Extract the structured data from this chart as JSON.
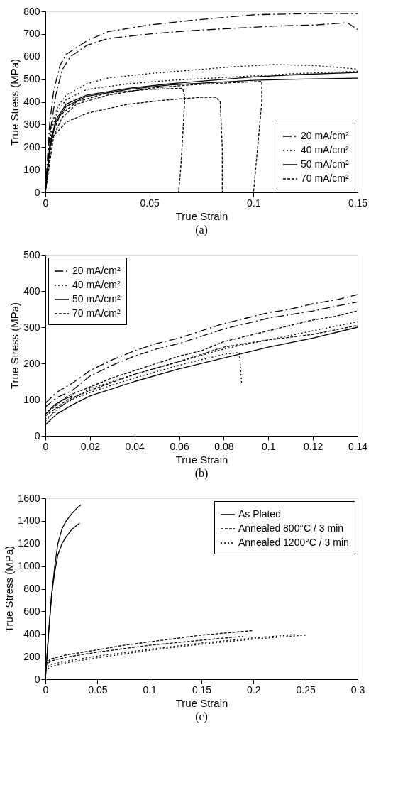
{
  "chart_data": [
    {
      "type": "line",
      "title": "(a)",
      "xlabel": "True Strain",
      "ylabel": "True Stress (MPa)",
      "xlim": [
        0,
        0.15
      ],
      "ylim": [
        0,
        800
      ],
      "xticks": [
        0,
        0.05,
        0.1,
        0.15
      ],
      "yticks": [
        0,
        100,
        200,
        300,
        400,
        500,
        600,
        700,
        800
      ],
      "grid": false,
      "legend": "bottom right",
      "series": [
        {
          "name": "20 mA/cm²",
          "color": "#000000",
          "line_style": "dashdot",
          "x": [
            0,
            0.002,
            0.004,
            0.007,
            0.01,
            0.02,
            0.03,
            0.05,
            0.07,
            0.1,
            0.125,
            0.15
          ],
          "values": [
            0,
            300,
            450,
            560,
            610,
            670,
            710,
            740,
            760,
            785,
            790,
            790
          ]
        },
        {
          "color": "#000000",
          "line_style": "dashdot",
          "x": [
            0,
            0.002,
            0.005,
            0.008,
            0.012,
            0.02,
            0.03,
            0.05,
            0.07,
            0.09,
            0.11,
            0.13,
            0.145,
            0.15
          ],
          "values": [
            0,
            250,
            430,
            540,
            600,
            650,
            680,
            700,
            715,
            725,
            735,
            740,
            750,
            720
          ]
        },
        {
          "name": "40 mA/cm²",
          "color": "#000000",
          "line_style": "dotted",
          "x": [
            0,
            0.003,
            0.006,
            0.01,
            0.02,
            0.03,
            0.05,
            0.07,
            0.09,
            0.11,
            0.13,
            0.15
          ],
          "values": [
            0,
            300,
            380,
            430,
            480,
            505,
            525,
            540,
            555,
            565,
            560,
            545
          ]
        },
        {
          "color": "#000000",
          "line_style": "dotted",
          "x": [
            0,
            0.003,
            0.006,
            0.01,
            0.02,
            0.04,
            0.06,
            0.08,
            0.1,
            0.12,
            0.15
          ],
          "values": [
            0,
            280,
            360,
            410,
            455,
            480,
            495,
            505,
            515,
            525,
            535
          ]
        },
        {
          "name": "50 mA/cm²",
          "color": "#000000",
          "line_style": "solid",
          "x": [
            0,
            0.002,
            0.005,
            0.01,
            0.02,
            0.04,
            0.06,
            0.08,
            0.1,
            0.12,
            0.15
          ],
          "values": [
            0,
            200,
            320,
            390,
            430,
            460,
            480,
            495,
            510,
            520,
            530
          ]
        },
        {
          "color": "#000000",
          "line_style": "solid",
          "x": [
            0,
            0.002,
            0.005,
            0.01,
            0.02,
            0.04,
            0.06,
            0.08,
            0.1,
            0.12,
            0.15
          ],
          "values": [
            0,
            190,
            310,
            380,
            425,
            455,
            475,
            485,
            495,
            500,
            505
          ]
        },
        {
          "name": "70 mA/cm²",
          "color": "#000000",
          "line_style": "dashed",
          "x": [
            0,
            0.003,
            0.007,
            0.015,
            0.03,
            0.05,
            0.066,
            0.067,
            0.066,
            0.065,
            0.064
          ],
          "values": [
            0,
            250,
            340,
            400,
            440,
            455,
            460,
            420,
            250,
            100,
            0
          ]
        },
        {
          "color": "#000000",
          "line_style": "dashed",
          "x": [
            0,
            0.004,
            0.01,
            0.02,
            0.04,
            0.06,
            0.075,
            0.082,
            0.084,
            0.085,
            0.085
          ],
          "values": [
            0,
            250,
            310,
            350,
            390,
            410,
            420,
            420,
            400,
            200,
            0
          ]
        },
        {
          "color": "#000000",
          "line_style": "dashed",
          "x": [
            0,
            0.003,
            0.008,
            0.015,
            0.03,
            0.05,
            0.07,
            0.09,
            0.104,
            0.104,
            0.102,
            0.1
          ],
          "values": [
            0,
            230,
            330,
            390,
            430,
            460,
            475,
            485,
            490,
            400,
            200,
            0
          ]
        }
      ]
    },
    {
      "type": "line",
      "title": "(b)",
      "xlabel": "True Strain",
      "ylabel": "True Stress (MPa)",
      "xlim": [
        0,
        0.14
      ],
      "ylim": [
        0,
        500
      ],
      "xticks": [
        0,
        0.02,
        0.04,
        0.06,
        0.08,
        0.1,
        0.12,
        0.14
      ],
      "yticks": [
        0,
        100,
        200,
        300,
        400,
        500
      ],
      "grid": false,
      "legend": "top left",
      "series": [
        {
          "name": "20 mA/cm²",
          "color": "#000000",
          "line_style": "dashdot",
          "x": [
            0,
            0.005,
            0.012,
            0.02,
            0.03,
            0.04,
            0.05,
            0.06,
            0.07,
            0.08,
            0.09,
            0.1,
            0.11,
            0.12,
            0.13,
            0.14
          ],
          "values": [
            90,
            120,
            145,
            180,
            210,
            235,
            255,
            270,
            290,
            310,
            325,
            340,
            350,
            365,
            375,
            390
          ]
        },
        {
          "color": "#000000",
          "line_style": "dashdot",
          "x": [
            0,
            0.005,
            0.012,
            0.02,
            0.03,
            0.04,
            0.05,
            0.06,
            0.07,
            0.08,
            0.1,
            0.12,
            0.14
          ],
          "values": [
            80,
            105,
            125,
            165,
            195,
            220,
            240,
            255,
            275,
            295,
            325,
            345,
            370
          ]
        },
        {
          "name": "40 mA/cm²",
          "color": "#000000",
          "line_style": "dotted",
          "x": [
            0,
            0.005,
            0.012,
            0.02,
            0.04,
            0.06,
            0.08,
            0.087,
            0.088
          ],
          "values": [
            40,
            75,
            100,
            120,
            160,
            195,
            225,
            230,
            145
          ]
        },
        {
          "color": "#000000",
          "line_style": "dotted",
          "x": [
            0,
            0.01,
            0.02,
            0.04,
            0.06,
            0.08,
            0.1,
            0.12,
            0.14
          ],
          "values": [
            45,
            95,
            130,
            170,
            205,
            240,
            265,
            290,
            315
          ]
        },
        {
          "name": "50 mA/cm²",
          "color": "#000000",
          "line_style": "solid",
          "x": [
            0,
            0.005,
            0.012,
            0.02,
            0.04,
            0.06,
            0.08,
            0.1,
            0.12,
            0.14
          ],
          "values": [
            30,
            60,
            85,
            110,
            150,
            185,
            215,
            245,
            270,
            300
          ]
        },
        {
          "color": "#000000",
          "line_style": "solid",
          "x": [
            0,
            0.004,
            0.008,
            0.012
          ],
          "values": [
            60,
            85,
            100,
            110
          ]
        },
        {
          "name": "70 mA/cm²",
          "color": "#000000",
          "line_style": "dashed",
          "x": [
            0,
            0.01,
            0.02,
            0.03,
            0.04,
            0.05,
            0.06,
            0.07,
            0.08,
            0.09,
            0.1,
            0.11,
            0.12,
            0.13,
            0.14
          ],
          "values": [
            60,
            110,
            135,
            160,
            180,
            200,
            220,
            235,
            260,
            275,
            290,
            305,
            320,
            330,
            345
          ]
        },
        {
          "color": "#000000",
          "line_style": "dashed",
          "x": [
            0,
            0.01,
            0.02,
            0.04,
            0.06,
            0.08,
            0.1,
            0.12,
            0.14
          ],
          "values": [
            55,
            100,
            125,
            170,
            205,
            245,
            265,
            280,
            305
          ]
        }
      ]
    },
    {
      "type": "line",
      "title": "(c)",
      "xlabel": "True Strain",
      "ylabel": "True Stress (MPa)",
      "xlim": [
        0,
        0.3
      ],
      "ylim": [
        0,
        1600
      ],
      "xticks": [
        0,
        0.05,
        0.1,
        0.15,
        0.2,
        0.25,
        0.3
      ],
      "yticks": [
        0,
        200,
        400,
        600,
        800,
        1000,
        1200,
        1400,
        1600
      ],
      "grid": false,
      "legend": "top right",
      "series": [
        {
          "name": "As Plated",
          "color": "#000000",
          "line_style": "solid",
          "x": [
            0,
            0.003,
            0.006,
            0.009,
            0.012,
            0.016,
            0.02,
            0.025,
            0.03,
            0.034
          ],
          "values": [
            0,
            400,
            750,
            1000,
            1200,
            1330,
            1400,
            1460,
            1510,
            1540
          ]
        },
        {
          "color": "#000000",
          "line_style": "solid",
          "x": [
            0,
            0.003,
            0.006,
            0.009,
            0.012,
            0.016,
            0.02,
            0.025,
            0.03,
            0.033
          ],
          "values": [
            0,
            400,
            750,
            950,
            1100,
            1200,
            1260,
            1320,
            1360,
            1380
          ]
        },
        {
          "name": "Annealed 800°C / 3 min",
          "color": "#000000",
          "line_style": "dashed",
          "x": [
            0,
            0.005,
            0.02,
            0.05,
            0.075,
            0.1,
            0.125,
            0.15,
            0.175,
            0.2
          ],
          "values": [
            130,
            180,
            215,
            260,
            300,
            330,
            360,
            390,
            410,
            430
          ]
        },
        {
          "color": "#000000",
          "line_style": "dashed",
          "x": [
            0,
            0.005,
            0.02,
            0.05,
            0.1,
            0.15,
            0.19
          ],
          "values": [
            120,
            160,
            195,
            240,
            300,
            345,
            380
          ]
        },
        {
          "name": "Annealed 1200°C / 3 min",
          "color": "#000000",
          "line_style": "dotted",
          "x": [
            0,
            0.005,
            0.02,
            0.05,
            0.1,
            0.15,
            0.2,
            0.25
          ],
          "values": [
            70,
            110,
            145,
            190,
            255,
            310,
            355,
            390
          ]
        },
        {
          "color": "#000000",
          "line_style": "dotted",
          "x": [
            0,
            0.005,
            0.02,
            0.05,
            0.1,
            0.15,
            0.2,
            0.24
          ],
          "values": [
            90,
            130,
            160,
            205,
            265,
            320,
            365,
            395
          ]
        }
      ]
    }
  ]
}
